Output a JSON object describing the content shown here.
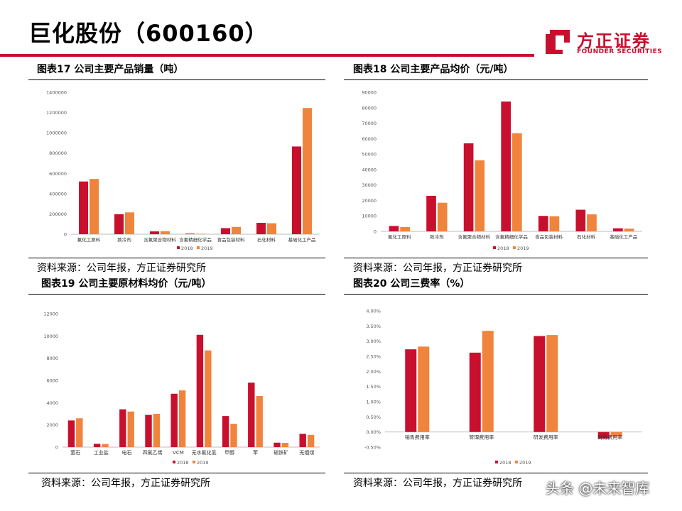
{
  "page_title": "巨化股份（600160）",
  "logo": {
    "cn": "方正证券",
    "en": "FOUNDER SECURITIES",
    "mark": "founder-logo-icon"
  },
  "colors": {
    "s2018": "#c8102e",
    "s2019": "#f0843c",
    "bar_top": "#c8102e"
  },
  "watermark": "头条 @未来智库",
  "chart_data": [
    {
      "type": "bar",
      "title": "图表17 公司主要产品销量（吨）",
      "source": "资料来源：公司年报，方正证券研究所",
      "categories": [
        "氟化工原料",
        "致冷剂",
        "含氟聚合物材料",
        "含氟精细化学品",
        "食品包装材料",
        "石化材料",
        "基础化工产品"
      ],
      "series": [
        {
          "name": "2018",
          "values": [
            520000,
            198000,
            28000,
            6000,
            60000,
            112000,
            865000
          ]
        },
        {
          "name": "2019",
          "values": [
            545000,
            215000,
            30000,
            4000,
            72000,
            108000,
            1245000
          ]
        }
      ],
      "ylim": [
        0,
        1400000
      ],
      "yticks": [
        "0",
        "200000",
        "400000",
        "600000",
        "800000",
        "1000000",
        "1200000",
        "1400000"
      ],
      "legend": "bottom",
      "grid": false
    },
    {
      "type": "bar",
      "title": "图表18 公司主要产品均价（元/吨）",
      "source": "资料来源：公司年报，方正证券研究所",
      "categories": [
        "氟化工原料",
        "致冷剂",
        "含氟聚合物材料",
        "含氟精细化学品",
        "食品包装材料",
        "石化材料",
        "基础化工产品"
      ],
      "series": [
        {
          "name": "2018",
          "values": [
            3500,
            23000,
            57000,
            84000,
            10000,
            14000,
            2000
          ]
        },
        {
          "name": "2019",
          "values": [
            2800,
            18500,
            46000,
            63500,
            9800,
            11000,
            1800
          ]
        }
      ],
      "ylim": [
        0,
        90000
      ],
      "yticks": [
        "0",
        "10000",
        "20000",
        "30000",
        "40000",
        "50000",
        "60000",
        "70000",
        "80000",
        "90000"
      ],
      "legend": "bottom",
      "grid": false
    },
    {
      "type": "bar",
      "title": "图表19 公司主要原材料均价（元/吨）",
      "source": "资料来源：公司年报，方正证券研究所",
      "categories": [
        "萤石",
        "工业盐",
        "电石",
        "四氯乙烯",
        "VCM",
        "无水氟化氢",
        "甲醇",
        "苯",
        "硫铁矿",
        "无烟煤"
      ],
      "series": [
        {
          "name": "2018",
          "values": [
            2400,
            300,
            3400,
            2900,
            4800,
            10100,
            2800,
            5800,
            400,
            1200
          ]
        },
        {
          "name": "2019",
          "values": [
            2600,
            280,
            3200,
            3000,
            5100,
            8700,
            2100,
            4600,
            380,
            1100
          ]
        }
      ],
      "ylim": [
        0,
        12000
      ],
      "yticks": [
        "0",
        "2000",
        "4000",
        "6000",
        "8000",
        "10000",
        "12000"
      ],
      "legend": "bottom",
      "grid": false
    },
    {
      "type": "bar",
      "title": "图表20 公司三费率（%）",
      "source": "资料来源：公司年报，方正证券研究所",
      "categories": [
        "销售费用率",
        "管理费用率",
        "研发费用率",
        "财务费用率"
      ],
      "series": [
        {
          "name": "2018",
          "values": [
            2.73,
            2.62,
            3.17,
            -0.22
          ]
        },
        {
          "name": "2019",
          "values": [
            2.82,
            3.34,
            3.2,
            -0.15
          ]
        }
      ],
      "ylim": [
        -0.5,
        4.0
      ],
      "yticks": [
        "-0.50%",
        "0.00%",
        "0.50%",
        "1.00%",
        "1.50%",
        "2.00%",
        "2.50%",
        "3.00%",
        "3.50%",
        "4.00%"
      ],
      "legend": "bottom",
      "grid": false
    }
  ]
}
